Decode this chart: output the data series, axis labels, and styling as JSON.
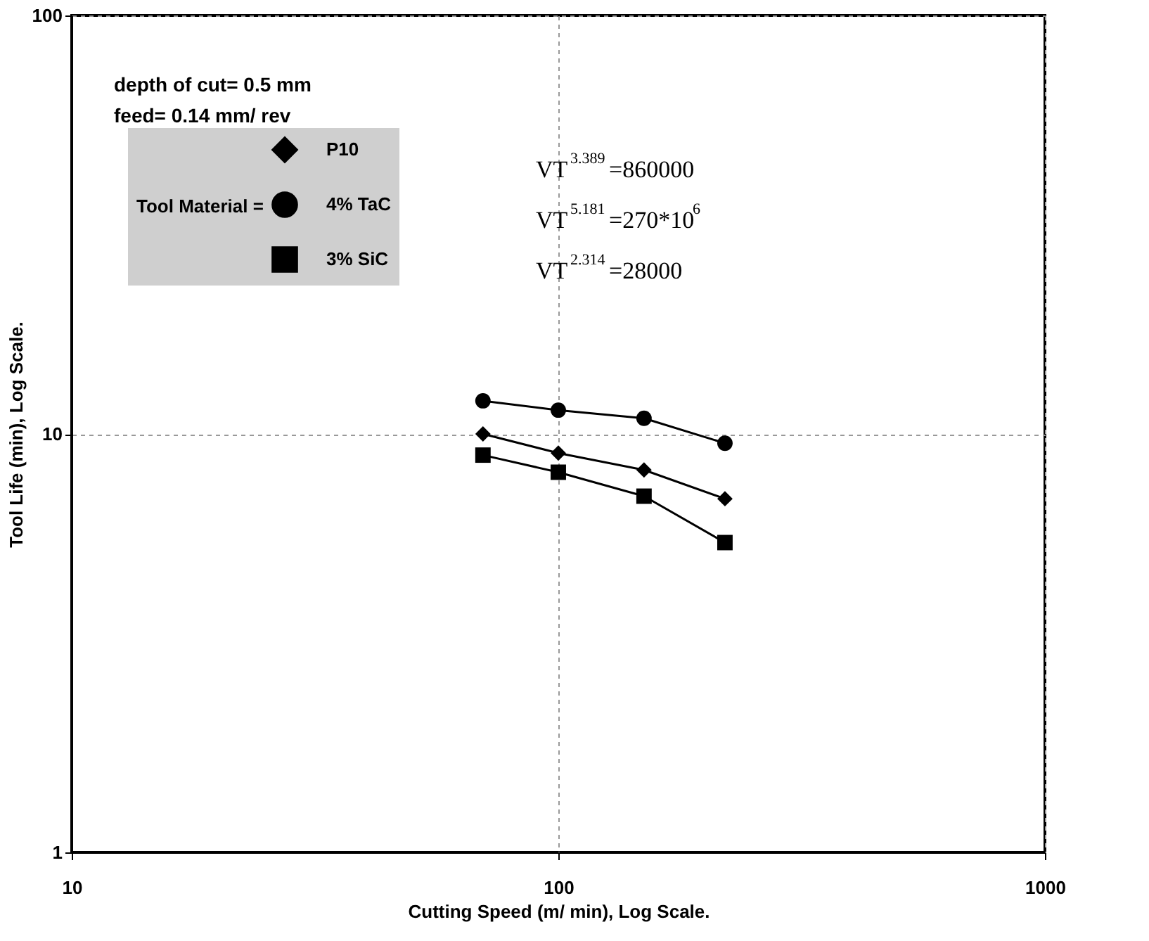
{
  "chart_data": {
    "type": "line",
    "xlabel": "Cutting Speed (m/ min), Log Scale.",
    "ylabel": "Tool Life (min), Log Scale.",
    "legend_title": "Tool Material =",
    "annotations": [
      "depth of cut= 0.5 mm",
      "feed= 0.14 mm/ rev",
      "VT$^{3.389}$=860000",
      "VT$^{5.181}$=270*10$^{6}$",
      "VT$^{2.314}$=28000"
    ],
    "x": [
      70,
      100,
      150,
      220
    ],
    "series": [
      {
        "name": "P10",
        "color": "#000000",
        "marker": "diamond",
        "values": [
          10,
          9,
          8.2,
          7
        ]
      },
      {
        "name": "4% TaC",
        "color": "#000000",
        "marker": "circle",
        "values": [
          12,
          11.4,
          10.9,
          9.5
        ]
      },
      {
        "name": "3% SiC",
        "color": "#000000",
        "marker": "square",
        "values": [
          8.9,
          8.1,
          7.1,
          5.5
        ]
      }
    ],
    "xlim": [
      10,
      1000
    ],
    "xticks": [
      10,
      100,
      1000
    ],
    "ylim": [
      1,
      100
    ],
    "yticks": [
      1,
      10,
      100
    ],
    "log": "xy",
    "grid": true,
    "legend": "top left",
    "line_style": "solid"
  }
}
